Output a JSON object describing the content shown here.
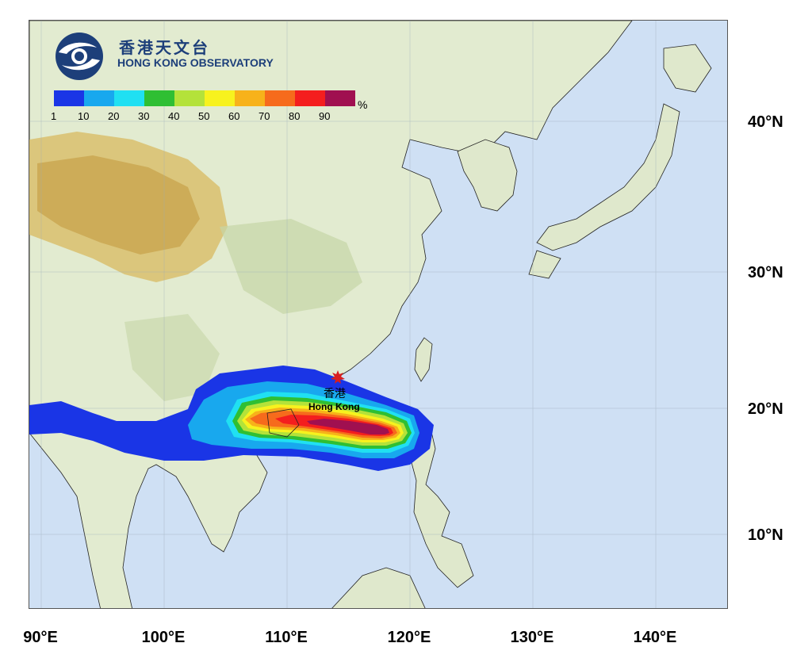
{
  "logo": {
    "chinese_name": "香港天文台",
    "english_name": "HONG KONG OBSERVATORY",
    "icon": "hko-swirl-logo"
  },
  "colorbar": {
    "unit": "%",
    "labels": [
      "1",
      "10",
      "20",
      "30",
      "40",
      "50",
      "60",
      "70",
      "80",
      "90"
    ],
    "colors": [
      "#1a35e6",
      "#18a8ee",
      "#20e0f2",
      "#2fbf33",
      "#b4e23a",
      "#f7f21e",
      "#f7b21a",
      "#f66b1c",
      "#f41e1e",
      "#a01050"
    ]
  },
  "location_marker": {
    "label_cn": "香港",
    "label_en": "Hong Kong",
    "icon": "star-marker-icon",
    "color": "#d81e1e"
  },
  "axes": {
    "latitude_ticks": [
      "40°N",
      "30°N",
      "20°N",
      "10°N"
    ],
    "longitude_ticks": [
      "90°E",
      "100°E",
      "110°E",
      "120°E",
      "130°E",
      "140°E"
    ]
  },
  "map_colors": {
    "sea": "#cfe0f4",
    "lowland": "#dfeacc",
    "plateau": "#d9bf6d"
  }
}
